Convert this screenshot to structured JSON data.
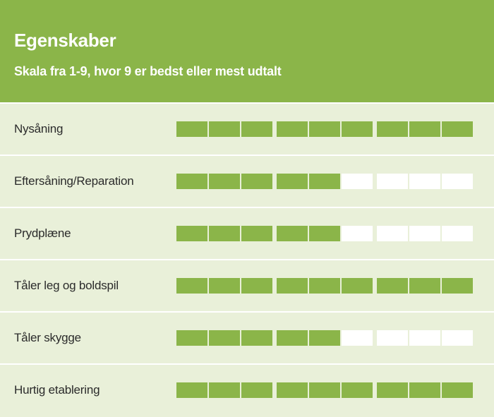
{
  "header": {
    "title": "Egenskaber",
    "subtitle": "Skala fra 1-9, hvor 9 er bedst eller mest udtalt"
  },
  "scale_max": 9,
  "colors": {
    "accent": "#8bb549",
    "background": "#e9f0d9",
    "empty": "#ffffff"
  },
  "rows": [
    {
      "label": "Nysåning",
      "value": 9
    },
    {
      "label": "Eftersåning/Reparation",
      "value": 5
    },
    {
      "label": "Prydplæne",
      "value": 5
    },
    {
      "label": "Tåler leg og boldspil",
      "value": 9
    },
    {
      "label": "Tåler skygge",
      "value": 5
    },
    {
      "label": "Hurtig etablering",
      "value": 9
    }
  ]
}
